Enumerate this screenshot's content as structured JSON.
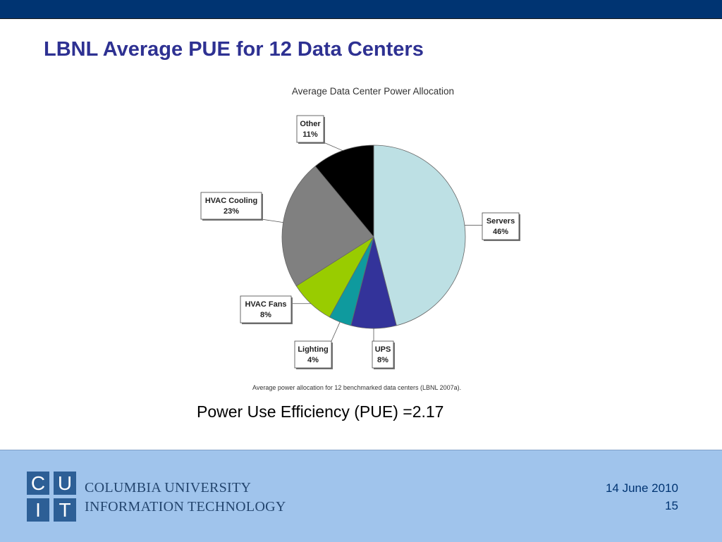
{
  "slide": {
    "title": "LBNL Average PUE for 12 Data Centers",
    "pue_statement": "Power Use Efficiency (PUE) =2.17"
  },
  "footer": {
    "logo_letters": [
      "C",
      "U",
      "I",
      "T"
    ],
    "logo_line1": "COLUMBIA UNIVERSITY",
    "logo_line2": "INFORMATION TECHNOLOGY",
    "date": "14 June 2010",
    "page_number": "15"
  },
  "colors": {
    "top_bar": "#003472",
    "title": "#2e3192",
    "footer_bg": "#a0c4ec",
    "logo": "#2d5f96"
  },
  "chart_data": {
    "type": "pie",
    "title": "Average Data Center Power Allocation",
    "caption": "Average power allocation for 12 benchmarked data centers (LBNL 2007a).",
    "slices": [
      {
        "label": "Servers",
        "percent_text": "46%",
        "value": 46,
        "color": "#bde0e4"
      },
      {
        "label": "UPS",
        "percent_text": "8%",
        "value": 8,
        "color": "#33339a"
      },
      {
        "label": "Lighting",
        "percent_text": "4%",
        "value": 4,
        "color": "#0f9a9e"
      },
      {
        "label": "HVAC Fans",
        "percent_text": "8%",
        "value": 8,
        "color": "#99cc00"
      },
      {
        "label": "HVAC Cooling",
        "percent_text": "23%",
        "value": 23,
        "color": "#808080"
      },
      {
        "label": "Other",
        "percent_text": "11%",
        "value": 11,
        "color": "#000000"
      }
    ]
  }
}
